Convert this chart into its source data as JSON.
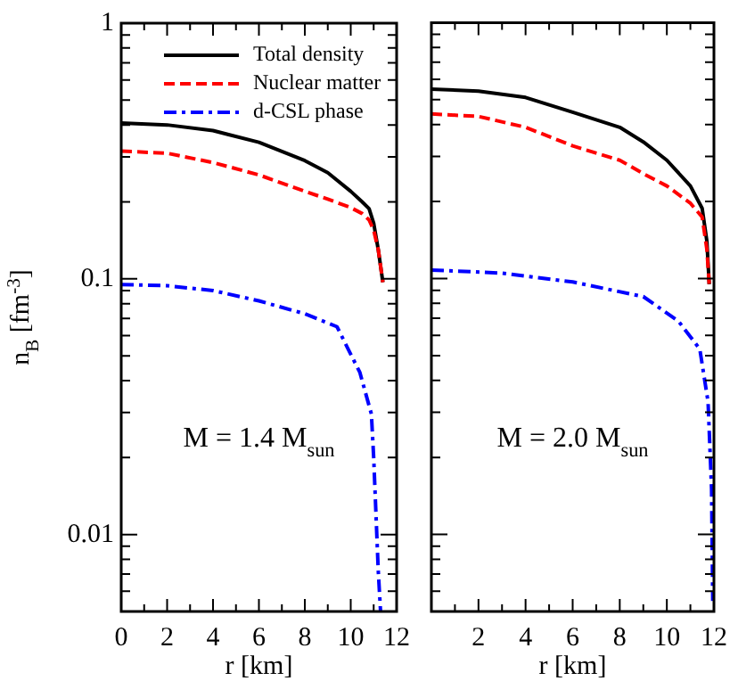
{
  "chart_data": [
    {
      "type": "line",
      "ylabel": "n$_{B}$ [fm$^{-3}$]",
      "xlabel": "r [km]",
      "log": "y",
      "grid": false,
      "legend": "top",
      "marker": "none",
      "annotations": [
        "M = 1.4 M$_{sun}$"
      ],
      "xlim": [
        0,
        12
      ],
      "xticks": [
        0,
        {
          "value": 1,
          "label": null
        },
        2,
        {
          "value": 3,
          "label": null
        },
        4,
        {
          "value": 5,
          "label": null
        },
        6,
        {
          "value": 7,
          "label": null
        },
        8,
        {
          "value": 9,
          "label": null
        },
        10,
        {
          "value": 11,
          "label": null
        },
        12
      ],
      "ylim": [
        0.005,
        1
      ],
      "yticks": [
        {
          "value": 0.006,
          "label": null
        },
        {
          "value": 0.007,
          "label": null
        },
        {
          "value": 0.008,
          "label": null
        },
        {
          "value": 0.009,
          "label": null
        },
        0.01,
        {
          "value": 0.02,
          "label": null
        },
        {
          "value": 0.03,
          "label": null
        },
        {
          "value": 0.04,
          "label": null
        },
        {
          "value": 0.05,
          "label": null
        },
        {
          "value": 0.06,
          "label": null
        },
        {
          "value": 0.07,
          "label": null
        },
        {
          "value": 0.08,
          "label": null
        },
        {
          "value": 0.09,
          "label": null
        },
        0.1,
        {
          "value": 0.2,
          "label": null
        },
        {
          "value": 0.3,
          "label": null
        },
        {
          "value": 0.4,
          "label": null
        },
        {
          "value": 0.5,
          "label": null
        },
        {
          "value": 0.6,
          "label": null
        },
        {
          "value": 0.7,
          "label": null
        },
        {
          "value": 0.8,
          "label": null
        },
        {
          "value": 0.9,
          "label": null
        },
        1
      ],
      "series": [
        {
          "name": "Total density",
          "color": "#000000",
          "line_style": "solid",
          "x": [
            0,
            2,
            4,
            6,
            8,
            9,
            10,
            10.5,
            10.8,
            11,
            11.2,
            11.4
          ],
          "values": [
            0.407,
            0.4,
            0.38,
            0.342,
            0.29,
            0.26,
            0.22,
            0.2,
            0.188,
            0.165,
            0.13,
            0.097
          ]
        },
        {
          "name": "Nuclear matter",
          "color": "#ff0000",
          "line_style": "dashed",
          "x": [
            0,
            2,
            4,
            6,
            8,
            9,
            10,
            10.5,
            10.8,
            11,
            11.2,
            11.4
          ],
          "values": [
            0.316,
            0.31,
            0.285,
            0.255,
            0.22,
            0.205,
            0.19,
            0.18,
            0.17,
            0.155,
            0.13,
            0.097
          ]
        },
        {
          "name": "d-CSL phase",
          "color": "#0000ff",
          "line_style": "dotted",
          "x": [
            0,
            2,
            4,
            6,
            8,
            9.4,
            10.4,
            10.9,
            11,
            11.2,
            11.3
          ],
          "values": [
            0.095,
            0.094,
            0.09,
            0.082,
            0.073,
            0.065,
            0.043,
            0.0296,
            0.02,
            0.0072,
            0.005
          ]
        }
      ]
    },
    {
      "type": "line",
      "xlabel": "r [km]",
      "log": "y",
      "grid": false,
      "marker": "none",
      "tick_labels": "x",
      "annotations": [
        "M = 2.0 M$_{sun}$"
      ],
      "xlim": [
        0,
        12
      ],
      "xticks": [
        {
          "value": 0,
          "label": null
        },
        {
          "value": 1,
          "label": null
        },
        2,
        {
          "value": 3,
          "label": null
        },
        4,
        {
          "value": 5,
          "label": null
        },
        6,
        {
          "value": 7,
          "label": null
        },
        8,
        {
          "value": 9,
          "label": null
        },
        10,
        {
          "value": 11,
          "label": null
        },
        12
      ],
      "ylim": [
        0.005,
        1
      ],
      "yticks": [
        {
          "value": 0.006,
          "label": null
        },
        {
          "value": 0.007,
          "label": null
        },
        {
          "value": 0.008,
          "label": null
        },
        {
          "value": 0.009,
          "label": null
        },
        {
          "value": 0.01,
          "label": null
        },
        {
          "value": 0.02,
          "label": null
        },
        {
          "value": 0.03,
          "label": null
        },
        {
          "value": 0.04,
          "label": null
        },
        {
          "value": 0.05,
          "label": null
        },
        {
          "value": 0.06,
          "label": null
        },
        {
          "value": 0.07,
          "label": null
        },
        {
          "value": 0.08,
          "label": null
        },
        {
          "value": 0.09,
          "label": null
        },
        {
          "value": 0.1,
          "label": null
        },
        {
          "value": 0.2,
          "label": null
        },
        {
          "value": 0.3,
          "label": null
        },
        {
          "value": 0.4,
          "label": null
        },
        {
          "value": 0.5,
          "label": null
        },
        {
          "value": 0.6,
          "label": null
        },
        {
          "value": 0.7,
          "label": null
        },
        {
          "value": 0.8,
          "label": null
        },
        {
          "value": 0.9,
          "label": null
        },
        {
          "value": 1,
          "label": null
        }
      ],
      "series": [
        {
          "color": "#000000",
          "line_style": "solid",
          "x": [
            0,
            2,
            4,
            6,
            8,
            9,
            10,
            11,
            11.5,
            11.7,
            11.8
          ],
          "values": [
            0.55,
            0.54,
            0.51,
            0.447,
            0.39,
            0.342,
            0.29,
            0.23,
            0.188,
            0.14,
            0.095
          ]
        },
        {
          "color": "#ff0000",
          "line_style": "dashed",
          "x": [
            0,
            2,
            4,
            6,
            8,
            9,
            10,
            11,
            11.5,
            11.7,
            11.8
          ],
          "values": [
            0.44,
            0.43,
            0.39,
            0.33,
            0.29,
            0.257,
            0.23,
            0.197,
            0.174,
            0.13,
            0.095
          ]
        },
        {
          "color": "#0000ff",
          "line_style": "dotted",
          "x": [
            0,
            3,
            6,
            9,
            10.5,
            11.4,
            11.75,
            11.9,
            11.95
          ],
          "values": [
            0.108,
            0.105,
            0.097,
            0.085,
            0.068,
            0.053,
            0.033,
            0.015,
            0.0055
          ]
        }
      ]
    }
  ]
}
